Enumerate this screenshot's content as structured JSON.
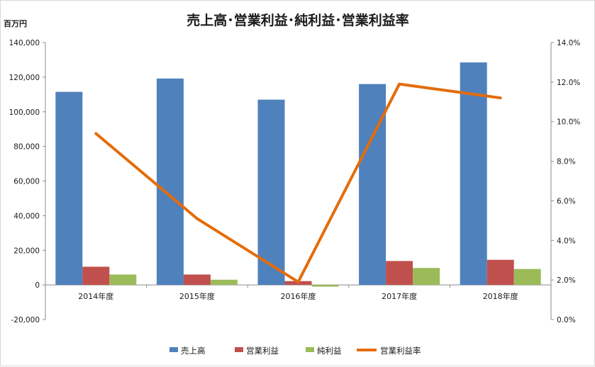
{
  "chart_data": {
    "type": "bar",
    "title": "売上高･営業利益･純利益･営業利益率",
    "y_unit_label": "百万円",
    "categories": [
      "2014年度",
      "2015年度",
      "2016年度",
      "2017年度",
      "2018年度"
    ],
    "series": [
      {
        "name": "売上高",
        "type": "bar",
        "axis": "left",
        "color": "#4f81bd",
        "values": [
          111500,
          119200,
          107000,
          116000,
          128500
        ]
      },
      {
        "name": "営業利益",
        "type": "bar",
        "axis": "left",
        "color": "#c0504d",
        "values": [
          10500,
          6000,
          2200,
          13800,
          14500
        ]
      },
      {
        "name": "純利益",
        "type": "bar",
        "axis": "left",
        "color": "#9bbb59",
        "values": [
          6000,
          3000,
          -1000,
          9800,
          9200
        ]
      },
      {
        "name": "営業利益率",
        "type": "line",
        "axis": "right",
        "color": "#e46c0a",
        "values": [
          9.4,
          5.1,
          1.9,
          11.9,
          11.2
        ]
      }
    ],
    "y_left": {
      "range": [
        -20000,
        140000
      ],
      "ticks": [
        "-20,000",
        "0",
        "20,000",
        "40,000",
        "60,000",
        "80,000",
        "100,000",
        "120,000",
        "140,000"
      ]
    },
    "y_right": {
      "range": [
        0,
        14
      ],
      "ticks": [
        "0.0%",
        "2.0%",
        "4.0%",
        "6.0%",
        "8.0%",
        "10.0%",
        "12.0%",
        "14.0%"
      ]
    },
    "grid": false,
    "legend_position": "bottom"
  }
}
